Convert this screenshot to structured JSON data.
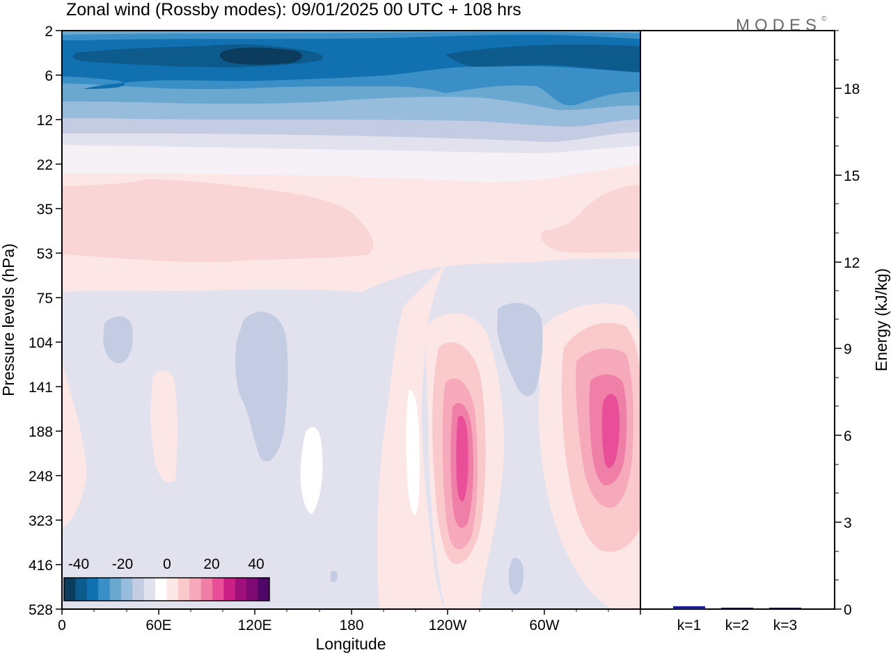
{
  "title": "Zonal wind (Rossby modes):  09/01/2025  00 UTC  + 108 hrs",
  "logo": "MODES",
  "logo_mark": "©",
  "colors": {
    "negative": [
      "#0b3c5d",
      "#0d5a8c",
      "#1170b0",
      "#3a8fc6",
      "#6aa8d0",
      "#98bcdc",
      "#c3cce3",
      "#e2e2ef"
    ],
    "positive": [
      "#ffffff",
      "#fde6e6",
      "#f9c9cc",
      "#f6a9bb",
      "#f07fa8",
      "#e84f98",
      "#cc1f86",
      "#a0107a",
      "#7c0a72",
      "#4e0766"
    ],
    "bar": "#1b1b99"
  },
  "chart_data": [
    {
      "type": "heatmap",
      "name": "zonal-wind-section",
      "title": "Zonal wind (Rossby modes):  09/01/2025  00 UTC  + 108 hrs",
      "xlabel": "Longitude",
      "ylabel": "Pressure levels (hPa)",
      "x_ticks": [
        "0",
        "60E",
        "120E",
        "180",
        "120W",
        "60W"
      ],
      "x_tick_degrees": [
        0,
        60,
        120,
        180,
        240,
        300
      ],
      "x_range_degrees": [
        0,
        360
      ],
      "y_ticks": [
        "2",
        "6",
        "12",
        "22",
        "35",
        "53",
        "75",
        "104",
        "141",
        "188",
        "248",
        "323",
        "416",
        "528"
      ],
      "colorbar": {
        "labels": [
          "-40",
          "-20",
          "0",
          "20",
          "40"
        ],
        "label_values": [
          -40,
          -20,
          0,
          20,
          40
        ],
        "levels": [
          -45,
          -40,
          -35,
          -30,
          -25,
          -20,
          -15,
          -10,
          -5,
          0,
          5,
          10,
          15,
          20,
          25,
          30,
          35,
          40,
          45
        ]
      },
      "features": [
        {
          "lon": [
            0,
            360
          ],
          "plev": [
            2,
            8
          ],
          "value_range": [
            -45,
            -25
          ]
        },
        {
          "lon": [
            0,
            360
          ],
          "plev": [
            8,
            16
          ],
          "value_range": [
            -25,
            -5
          ]
        },
        {
          "lon": [
            0,
            360
          ],
          "plev": [
            22,
            75
          ],
          "value_range": [
            0,
            5
          ]
        },
        {
          "lon": [
            45,
            190
          ],
          "plev": [
            28,
            60
          ],
          "value_range": [
            5,
            10
          ]
        },
        {
          "lon": [
            300,
            360
          ],
          "plev": [
            30,
            55
          ],
          "value_range": [
            5,
            10
          ]
        },
        {
          "lon": [
            230,
            260
          ],
          "plev": [
            100,
            450
          ],
          "peak_value": 25
        },
        {
          "lon": [
            320,
            360
          ],
          "plev": [
            95,
            400
          ],
          "peak_value": 25
        },
        {
          "lon": [
            270,
            300
          ],
          "plev": [
            75,
            150
          ],
          "value_range": [
            -10,
            -5
          ]
        },
        {
          "lon": [
            100,
            140
          ],
          "plev": [
            110,
            260
          ],
          "value_range": [
            -10,
            -5
          ]
        },
        {
          "lon": [
            25,
            45
          ],
          "plev": [
            110,
            150
          ],
          "value_range": [
            -10,
            -5
          ]
        }
      ]
    },
    {
      "type": "bar",
      "name": "rossby-energy",
      "categories": [
        "k=1",
        "k=2",
        "k=3"
      ],
      "values": [
        0.1,
        0.03,
        0.03
      ],
      "ylabel": "Energy (kJ/kg)",
      "y_ticks": [
        "0",
        "3",
        "6",
        "9",
        "12",
        "15",
        "18"
      ],
      "ylim": [
        0,
        20
      ]
    }
  ]
}
